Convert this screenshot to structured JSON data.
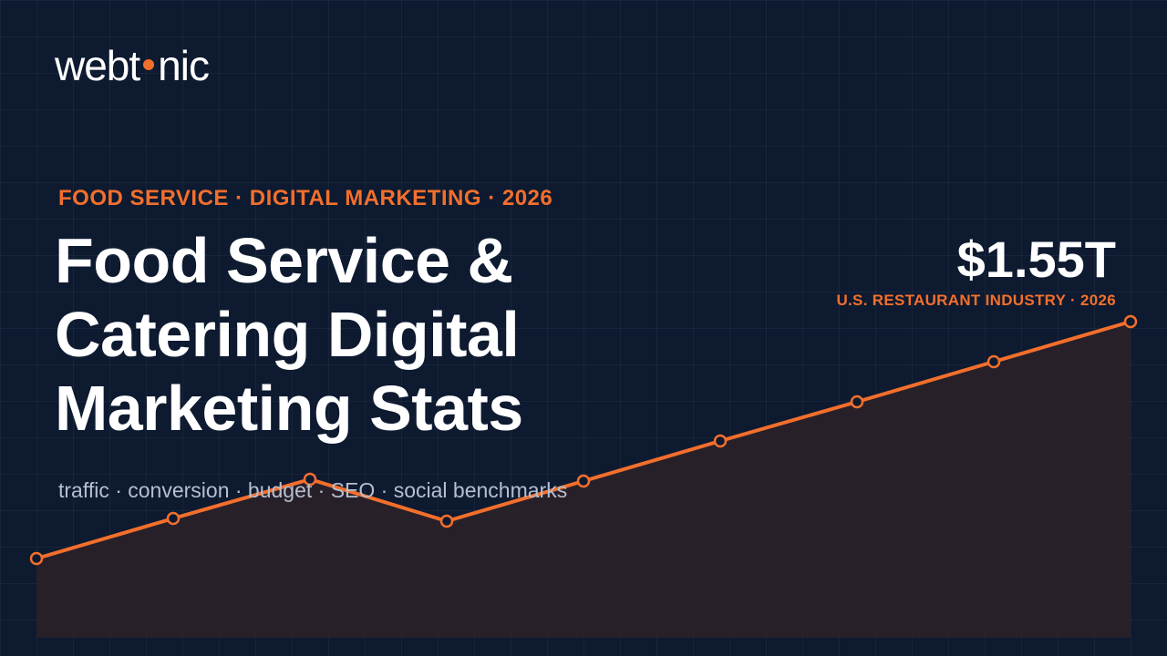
{
  "brand": {
    "logo_left": "webt",
    "logo_right": "nic",
    "accent_color": "#f36f2c",
    "background_color": "#0d1a30"
  },
  "hero": {
    "eyebrow": "FOOD SERVICE · DIGITAL MARKETING · 2026",
    "title_lines": [
      "Food Service &",
      "Catering Digital",
      "Marketing Stats"
    ],
    "subtitle": "traffic · conversion · budget · SEO · social benchmarks"
  },
  "stat": {
    "value": "$1.55T",
    "label": "U.S. RESTAURANT INDUSTRY · 2026"
  },
  "chart_data": {
    "type": "line",
    "x": [
      0,
      1,
      2,
      3,
      4,
      5,
      6,
      7,
      8
    ],
    "values": [
      0.0,
      0.88,
      1.74,
      0.82,
      1.7,
      2.58,
      3.44,
      4.32,
      5.2
    ],
    "ylim": [
      -1.74,
      5.2
    ],
    "grid": true,
    "area_fill": true,
    "line_color": "#f36f2c"
  }
}
